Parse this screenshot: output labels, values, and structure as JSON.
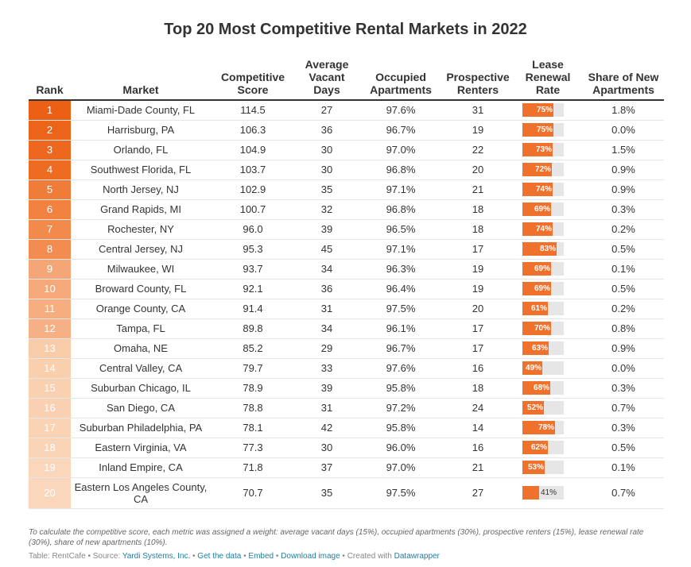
{
  "title": "Top 20 Most Competitive Rental Markets in 2022",
  "columns": [
    "Rank",
    "Market",
    "Competitive Score",
    "Average Vacant Days",
    "Occupied Apartments",
    "Prospective Renters",
    "Lease Renewal Rate",
    "Share of New Apartments"
  ],
  "chart_data": {
    "type": "table",
    "title": "Top 20 Most Competitive Rental Markets in 2022",
    "rows": [
      {
        "rank": "1",
        "market": "Miami-Dade County, FL",
        "score": "114.5",
        "vacant_days": "27",
        "occupied": "97.6%",
        "renters": "31",
        "renewal": 75,
        "renewal_label": "75%",
        "new_share": "1.8%",
        "rank_color": "#ec6016"
      },
      {
        "rank": "2",
        "market": "Harrisburg, PA",
        "score": "106.3",
        "vacant_days": "36",
        "occupied": "96.7%",
        "renters": "19",
        "renewal": 75,
        "renewal_label": "75%",
        "new_share": "0.0%",
        "rank_color": "#ec6419"
      },
      {
        "rank": "3",
        "market": "Orlando, FL",
        "score": "104.9",
        "vacant_days": "30",
        "occupied": "97.0%",
        "renters": "22",
        "renewal": 73,
        "renewal_label": "73%",
        "new_share": "1.5%",
        "rank_color": "#ed671e"
      },
      {
        "rank": "4",
        "market": "Southwest Florida, FL",
        "score": "103.7",
        "vacant_days": "30",
        "occupied": "96.8%",
        "renters": "20",
        "renewal": 72,
        "renewal_label": "72%",
        "new_share": "0.9%",
        "rank_color": "#ee6b22"
      },
      {
        "rank": "5",
        "market": "North Jersey, NJ",
        "score": "102.9",
        "vacant_days": "35",
        "occupied": "97.1%",
        "renters": "21",
        "renewal": 74,
        "renewal_label": "74%",
        "new_share": "0.9%",
        "rank_color": "#f07c3a"
      },
      {
        "rank": "6",
        "market": "Grand Rapids, MI",
        "score": "100.7",
        "vacant_days": "32",
        "occupied": "96.8%",
        "renters": "18",
        "renewal": 69,
        "renewal_label": "69%",
        "new_share": "0.3%",
        "rank_color": "#f18240"
      },
      {
        "rank": "7",
        "market": "Rochester, NY",
        "score": "96.0",
        "vacant_days": "39",
        "occupied": "96.5%",
        "renters": "18",
        "renewal": 74,
        "renewal_label": "74%",
        "new_share": "0.2%",
        "rank_color": "#f28a4c"
      },
      {
        "rank": "8",
        "market": "Central Jersey, NJ",
        "score": "95.3",
        "vacant_days": "45",
        "occupied": "97.1%",
        "renters": "17",
        "renewal": 83,
        "renewal_label": "83%",
        "new_share": "0.5%",
        "rank_color": "#f28c50"
      },
      {
        "rank": "9",
        "market": "Milwaukee, WI",
        "score": "93.7",
        "vacant_days": "34",
        "occupied": "96.3%",
        "renters": "19",
        "renewal": 69,
        "renewal_label": "69%",
        "new_share": "0.1%",
        "rank_color": "#f5a676"
      },
      {
        "rank": "10",
        "market": "Broward County, FL",
        "score": "92.1",
        "vacant_days": "36",
        "occupied": "96.4%",
        "renters": "19",
        "renewal": 69,
        "renewal_label": "69%",
        "new_share": "0.5%",
        "rank_color": "#f5a97b"
      },
      {
        "rank": "11",
        "market": "Orange County, CA",
        "score": "91.4",
        "vacant_days": "31",
        "occupied": "97.5%",
        "renters": "20",
        "renewal": 61,
        "renewal_label": "61%",
        "new_share": "0.2%",
        "rank_color": "#f6ad80"
      },
      {
        "rank": "12",
        "market": "Tampa, FL",
        "score": "89.8",
        "vacant_days": "34",
        "occupied": "96.1%",
        "renters": "17",
        "renewal": 70,
        "renewal_label": "70%",
        "new_share": "0.8%",
        "rank_color": "#f6b086"
      },
      {
        "rank": "13",
        "market": "Omaha, NE",
        "score": "85.2",
        "vacant_days": "29",
        "occupied": "96.7%",
        "renters": "17",
        "renewal": 63,
        "renewal_label": "63%",
        "new_share": "0.9%",
        "rank_color": "#f9cca9"
      },
      {
        "rank": "14",
        "market": "Central Valley, CA",
        "score": "79.7",
        "vacant_days": "33",
        "occupied": "97.6%",
        "renters": "16",
        "renewal": 49,
        "renewal_label": "49%",
        "new_share": "0.0%",
        "rank_color": "#f9cfae"
      },
      {
        "rank": "15",
        "market": "Suburban Chicago, IL",
        "score": "78.9",
        "vacant_days": "39",
        "occupied": "95.8%",
        "renters": "18",
        "renewal": 68,
        "renewal_label": "68%",
        "new_share": "0.3%",
        "rank_color": "#f9d0b0"
      },
      {
        "rank": "16",
        "market": "San Diego, CA",
        "score": "78.8",
        "vacant_days": "31",
        "occupied": "97.2%",
        "renters": "24",
        "renewal": 52,
        "renewal_label": "52%",
        "new_share": "0.7%",
        "rank_color": "#f9d1b2"
      },
      {
        "rank": "17",
        "market": "Suburban Philadelphia, PA",
        "score": "78.1",
        "vacant_days": "42",
        "occupied": "95.8%",
        "renters": "14",
        "renewal": 78,
        "renewal_label": "78%",
        "new_share": "0.3%",
        "rank_color": "#fad3b5"
      },
      {
        "rank": "18",
        "market": "Eastern Virginia, VA",
        "score": "77.3",
        "vacant_days": "30",
        "occupied": "96.0%",
        "renters": "16",
        "renewal": 62,
        "renewal_label": "62%",
        "new_share": "0.5%",
        "rank_color": "#fad4b7"
      },
      {
        "rank": "19",
        "market": "Inland Empire, CA",
        "score": "71.8",
        "vacant_days": "37",
        "occupied": "97.0%",
        "renters": "21",
        "renewal": 53,
        "renewal_label": "53%",
        "new_share": "0.1%",
        "rank_color": "#fad6ba"
      },
      {
        "rank": "20",
        "market": "Eastern Los Angeles County, CA",
        "score": "70.7",
        "vacant_days": "35",
        "occupied": "97.5%",
        "renters": "27",
        "renewal": 41,
        "renewal_label": "41%",
        "new_share": "0.7%",
        "rank_color": "#fad7bc"
      }
    ]
  },
  "colors": {
    "bar_fill": "#f0712b",
    "bar_track": "#e6e6e6",
    "link": "#1d81a2"
  },
  "note": "To calculate the competitive score, each metric was assigned a weight: average vacant days (15%), occupied apartments (30%), prospective renters (15%), lease renewal rate (30%), share of new apartments (10%).",
  "footer": {
    "prefix": "Table: RentCafe • Source: ",
    "source": "Yardi Systems, Inc.",
    "sep1": " • ",
    "get_data": "Get the data",
    "sep2": " • ",
    "embed": "Embed",
    "sep3": " • ",
    "download": "Download image",
    "sep4": " • Created with ",
    "datawrapper": "Datawrapper"
  }
}
